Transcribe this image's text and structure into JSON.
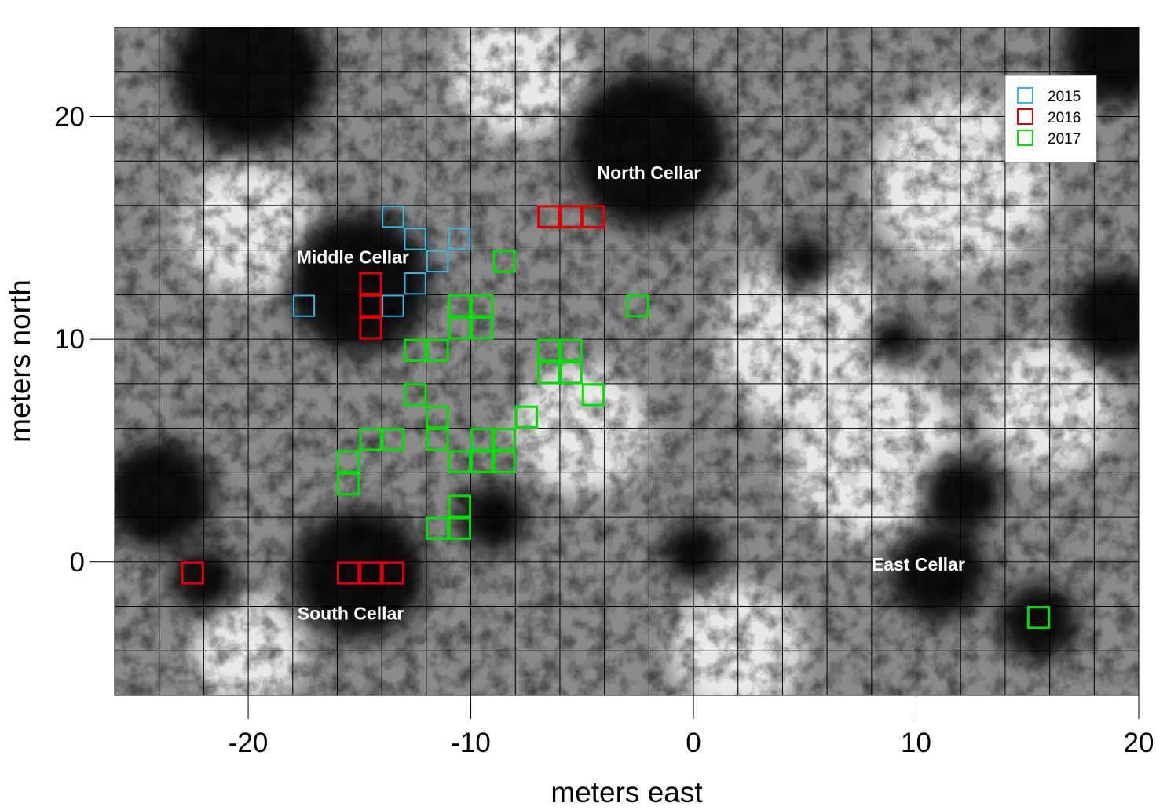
{
  "chart_data": {
    "type": "heatmap",
    "description_visible": "grayscale geophysical survey map with excavation unit squares",
    "title": "",
    "xlabel": "meters east",
    "ylabel": "meters north",
    "xlim": [
      -26,
      20
    ],
    "ylim": [
      -6,
      24
    ],
    "xticks": [
      -20,
      -10,
      0,
      10,
      20
    ],
    "yticks": [
      0,
      10,
      20
    ],
    "grid": true,
    "grid_spacing_m": 2,
    "legend": {
      "placement": "top-right",
      "entries": [
        {
          "label": "2015",
          "color": "#33b5e5"
        },
        {
          "label": "2016",
          "color": "#e00000"
        },
        {
          "label": "2017",
          "color": "#00e000"
        }
      ]
    },
    "annotations": [
      {
        "text": "North Cellar",
        "x": -2,
        "y": 17.2
      },
      {
        "text": "Middle Cellar",
        "x": -15.3,
        "y": 13.4
      },
      {
        "text": "South Cellar",
        "x": -15.4,
        "y": -2.6
      },
      {
        "text": "East Cellar",
        "x": 10.1,
        "y": -0.4
      }
    ],
    "dark_features": [
      {
        "x": -2,
        "y": 18.5,
        "r": 3.6
      },
      {
        "x": -15,
        "y": 12.5,
        "r": 3.2
      },
      {
        "x": -15,
        "y": -0.5,
        "r": 3
      },
      {
        "x": -22,
        "y": -0.8,
        "r": 1.5
      },
      {
        "x": 0,
        "y": 0.5,
        "r": 1.4
      },
      {
        "x": 5,
        "y": 13.5,
        "r": 1.3
      },
      {
        "x": 11,
        "y": -0.5,
        "r": 2.2
      },
      {
        "x": 15.5,
        "y": -2.7,
        "r": 1.8
      },
      {
        "x": 12,
        "y": 3,
        "r": 1.8
      },
      {
        "x": 19,
        "y": 11,
        "r": 2.2
      },
      {
        "x": -20,
        "y": 22,
        "r": 3.5
      },
      {
        "x": -24,
        "y": 3,
        "r": 2.5
      },
      {
        "x": 19,
        "y": 23,
        "r": 2.5
      },
      {
        "x": -9,
        "y": 2,
        "r": 1.6
      },
      {
        "x": 9,
        "y": 10,
        "r": 1.1
      }
    ],
    "bright_features": [
      {
        "x": -20,
        "y": 15,
        "r": 3
      },
      {
        "x": 5,
        "y": 10,
        "r": 4
      },
      {
        "x": 8,
        "y": 5,
        "r": 4
      },
      {
        "x": -8,
        "y": 22,
        "r": 3
      },
      {
        "x": 12,
        "y": 17,
        "r": 4
      },
      {
        "x": -20,
        "y": -4,
        "r": 2.5
      },
      {
        "x": 2,
        "y": -4,
        "r": 3
      },
      {
        "x": 16,
        "y": 7,
        "r": 3
      },
      {
        "x": -5,
        "y": 6,
        "r": 3
      }
    ],
    "series": [
      {
        "name": "2015",
        "units": [
          {
            "x": -13.5,
            "y": 15.5
          },
          {
            "x": -12.5,
            "y": 14.5
          },
          {
            "x": -10.5,
            "y": 14.5
          },
          {
            "x": -11.5,
            "y": 13.5
          },
          {
            "x": -12.5,
            "y": 12.5
          },
          {
            "x": -17.5,
            "y": 11.5
          },
          {
            "x": -13.5,
            "y": 11.5
          }
        ]
      },
      {
        "name": "2016",
        "units": [
          {
            "x": -6.5,
            "y": 15.5
          },
          {
            "x": -5.5,
            "y": 15.5
          },
          {
            "x": -4.5,
            "y": 15.5
          },
          {
            "x": -14.5,
            "y": 12.5
          },
          {
            "x": -14.5,
            "y": 11.5
          },
          {
            "x": -14.5,
            "y": 10.5
          },
          {
            "x": -22.5,
            "y": -0.5
          },
          {
            "x": -15.5,
            "y": -0.5
          },
          {
            "x": -14.5,
            "y": -0.5
          },
          {
            "x": -13.5,
            "y": -0.5
          }
        ]
      },
      {
        "name": "2017",
        "units": [
          {
            "x": -8.5,
            "y": 13.5
          },
          {
            "x": -2.5,
            "y": 11.5
          },
          {
            "x": -10.5,
            "y": 11.5
          },
          {
            "x": -9.5,
            "y": 11.5
          },
          {
            "x": -10.5,
            "y": 10.5
          },
          {
            "x": -9.5,
            "y": 10.5
          },
          {
            "x": -12.5,
            "y": 9.5
          },
          {
            "x": -11.5,
            "y": 9.5
          },
          {
            "x": -6.5,
            "y": 9.5
          },
          {
            "x": -5.5,
            "y": 9.5
          },
          {
            "x": -6.5,
            "y": 8.5
          },
          {
            "x": -5.5,
            "y": 8.5
          },
          {
            "x": -12.5,
            "y": 7.5
          },
          {
            "x": -4.5,
            "y": 7.5
          },
          {
            "x": -11.5,
            "y": 6.5
          },
          {
            "x": -7.5,
            "y": 6.5
          },
          {
            "x": -14.5,
            "y": 5.5
          },
          {
            "x": -13.5,
            "y": 5.5
          },
          {
            "x": -11.5,
            "y": 5.5
          },
          {
            "x": -9.5,
            "y": 5.5
          },
          {
            "x": -8.5,
            "y": 5.5
          },
          {
            "x": -15.5,
            "y": 4.5
          },
          {
            "x": -10.5,
            "y": 4.5
          },
          {
            "x": -9.5,
            "y": 4.5
          },
          {
            "x": -8.5,
            "y": 4.5
          },
          {
            "x": -15.5,
            "y": 3.5
          },
          {
            "x": -10.5,
            "y": 2.5
          },
          {
            "x": -11.5,
            "y": 1.5
          },
          {
            "x": -10.5,
            "y": 1.5
          },
          {
            "x": 15.5,
            "y": -2.5
          }
        ]
      }
    ]
  }
}
